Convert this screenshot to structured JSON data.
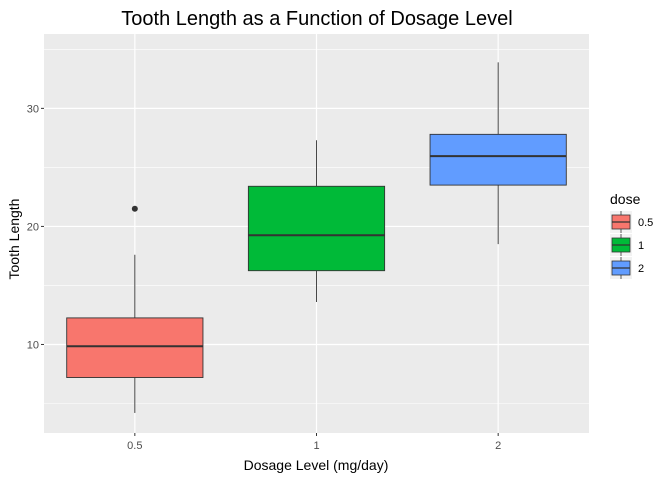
{
  "chart_data": {
    "type": "box",
    "title": "Tooth Length as a Function of Dosage Level",
    "xlabel": "Dosage Level (mg/day)",
    "ylabel": "Tooth Length",
    "categories": [
      "0.5",
      "1",
      "2"
    ],
    "ylim": [
      2.5,
      36.3
    ],
    "yticks": [
      10,
      20,
      30
    ],
    "boxes": [
      {
        "category": "0.5",
        "min": 4.2,
        "q1": 7.2,
        "median": 9.85,
        "q3": 12.25,
        "max": 17.6,
        "outliers": [
          21.5
        ],
        "color": "#F8766D"
      },
      {
        "category": "1",
        "min": 13.6,
        "q1": 16.25,
        "median": 19.25,
        "q3": 23.4,
        "max": 27.3,
        "outliers": [],
        "color": "#00BA38"
      },
      {
        "category": "2",
        "min": 18.5,
        "q1": 23.5,
        "median": 25.95,
        "q3": 27.8,
        "max": 33.9,
        "outliers": [],
        "color": "#619CFF"
      }
    ],
    "legend": {
      "title": "dose",
      "position": "right",
      "items": [
        {
          "label": "0.5",
          "color": "#F8766D"
        },
        {
          "label": "1",
          "color": "#00BA38"
        },
        {
          "label": "2",
          "color": "#619CFF"
        }
      ]
    },
    "grid": true,
    "panel_background": "#EBEBEB",
    "grid_color": "#FFFFFF"
  }
}
